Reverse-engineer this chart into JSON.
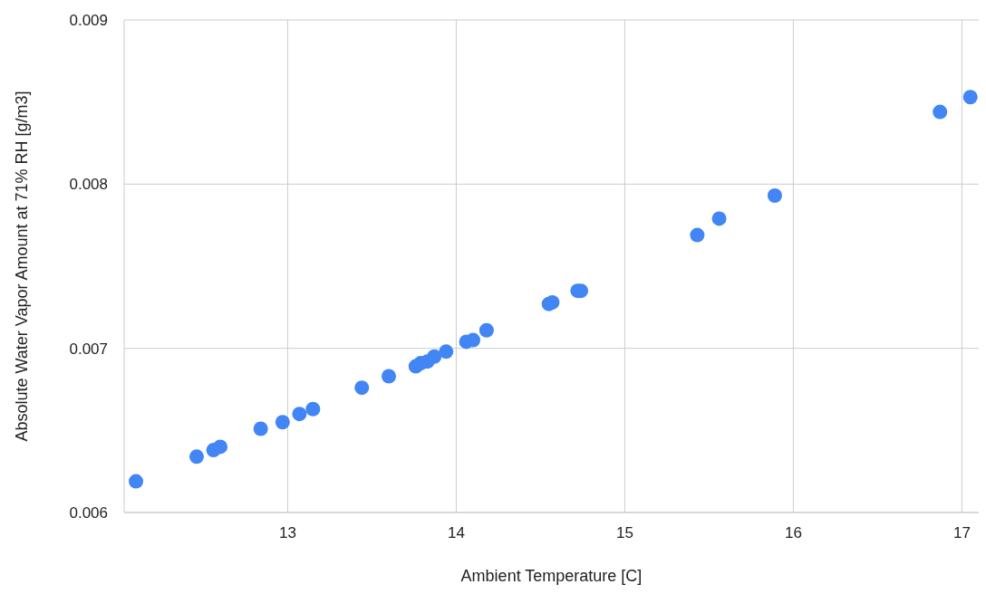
{
  "chart_data": {
    "type": "scatter",
    "xlabel": "Ambient Temperature [C]",
    "ylabel": "Absolute Water Vapor Amount at 71% RH [g/m3]",
    "x": [
      12.1,
      12.46,
      12.56,
      12.6,
      12.84,
      12.97,
      13.07,
      13.15,
      13.44,
      13.6,
      13.76,
      13.79,
      13.83,
      13.87,
      13.94,
      14.06,
      14.1,
      14.18,
      14.55,
      14.57,
      14.72,
      14.74,
      15.43,
      15.56,
      15.89,
      16.87,
      17.05
    ],
    "series": [
      {
        "color": "#4285f4",
        "values": [
          0.00619,
          0.00634,
          0.00638,
          0.0064,
          0.00651,
          0.00655,
          0.0066,
          0.00663,
          0.00676,
          0.00683,
          0.00689,
          0.00691,
          0.00692,
          0.00695,
          0.00698,
          0.00704,
          0.00705,
          0.00711,
          0.00727,
          0.00728,
          0.00735,
          0.00735,
          0.00769,
          0.00779,
          0.00793,
          0.00844,
          0.00853
        ]
      }
    ],
    "xlim": [
      12.03,
      17.1
    ],
    "xticks": [
      13,
      14,
      15,
      16,
      17
    ],
    "ylim": [
      0.006,
      0.009
    ],
    "yticks": [
      0.006,
      0.007,
      0.008,
      0.009
    ],
    "grid": true,
    "marker": "circle",
    "legend": false
  }
}
